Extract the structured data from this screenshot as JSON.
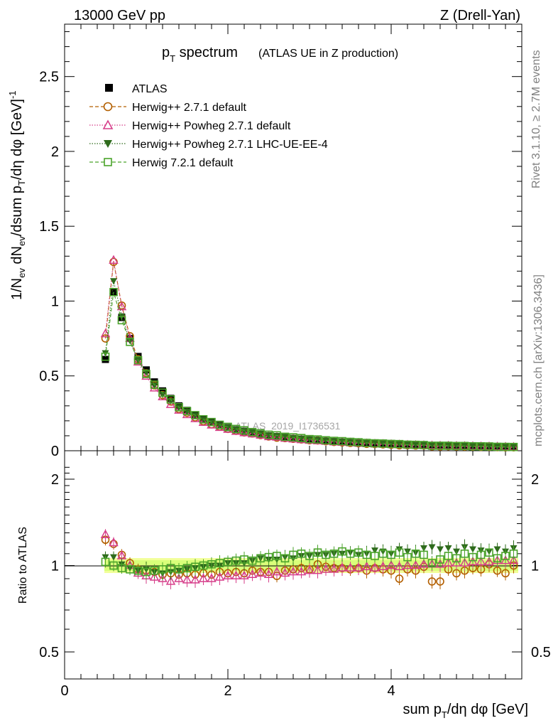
{
  "header": {
    "left": "13000 GeV pp",
    "right": "Z (Drell-Yan)"
  },
  "side": {
    "rivet": "Rivet 3.1.10, ≥ 2.7M events",
    "mcplots": "mcplots.cern.ch [arXiv:1306.3436]"
  },
  "chart_data": {
    "type": "scatter",
    "title_main": "p",
    "title_sub": "T",
    "title_rest": " spectrum",
    "title_paren": "(ATLAS UE in Z production)",
    "watermark": "ATLAS_2019_I1736531",
    "xlabel": "sum p_T/dη dφ [GeV]",
    "ylabel": "1/N_ev dN_ev/dsum p_T/dη dφ [GeV]^-1",
    "ratio_ylabel": "Ratio to ATLAS",
    "xlim": [
      0,
      5.6
    ],
    "ylim": [
      0,
      2.85
    ],
    "ratio_ylim": [
      0.35,
      2.3
    ],
    "x_ticks": [
      "0",
      "2",
      "4"
    ],
    "y_ticks": [
      "0",
      "0.5",
      "1",
      "1.5",
      "2",
      "2.5"
    ],
    "ratio_ticks": [
      "0.5",
      "1",
      "2"
    ],
    "x": [
      0.5,
      0.6,
      0.7,
      0.8,
      0.9,
      1.0,
      1.1,
      1.2,
      1.3,
      1.4,
      1.5,
      1.6,
      1.7,
      1.8,
      1.9,
      2.0,
      2.1,
      2.2,
      2.3,
      2.4,
      2.5,
      2.6,
      2.7,
      2.8,
      2.9,
      3.0,
      3.1,
      3.2,
      3.3,
      3.4,
      3.5,
      3.6,
      3.7,
      3.8,
      3.9,
      4.0,
      4.1,
      4.2,
      4.3,
      4.4,
      4.5,
      4.6,
      4.7,
      4.8,
      4.9,
      5.0,
      5.1,
      5.2,
      5.3,
      5.4,
      5.5
    ],
    "series": [
      {
        "name": "ATLAS",
        "marker": "filled-square",
        "color": "#000000",
        "values": [
          0.61,
          1.06,
          0.89,
          0.75,
          0.63,
          0.54,
          0.46,
          0.4,
          0.35,
          0.3,
          0.27,
          0.24,
          0.21,
          0.19,
          0.17,
          0.155,
          0.14,
          0.13,
          0.12,
          0.11,
          0.1,
          0.095,
          0.088,
          0.082,
          0.077,
          0.072,
          0.068,
          0.064,
          0.06,
          0.057,
          0.054,
          0.051,
          0.048,
          0.046,
          0.044,
          0.042,
          0.04,
          0.038,
          0.036,
          0.035,
          0.033,
          0.032,
          0.031,
          0.03,
          0.029,
          0.028,
          0.027,
          0.026,
          0.025,
          0.024,
          0.023
        ]
      },
      {
        "name": "Herwig++ 2.7.1 default",
        "marker": "open-circle",
        "color": "#b35f00",
        "ratios": [
          1.23,
          1.19,
          1.09,
          1.02,
          0.97,
          0.96,
          0.95,
          0.93,
          0.94,
          0.93,
          0.94,
          0.93,
          0.94,
          0.93,
          0.95,
          0.94,
          0.95,
          0.94,
          0.96,
          0.95,
          0.95,
          0.92,
          0.96,
          0.97,
          0.98,
          0.97,
          1.01,
          0.99,
          0.98,
          0.98,
          0.97,
          0.98,
          0.96,
          0.98,
          0.97,
          0.96,
          0.9,
          0.97,
          0.96,
          0.99,
          0.88,
          0.88,
          0.97,
          0.94,
          0.96,
          0.98,
          0.97,
          1.01,
          0.96,
          0.94,
          1.0
        ]
      },
      {
        "name": "Herwig++ Powheg 2.7.1 default",
        "marker": "open-triangle",
        "color": "#d63e8a",
        "ratios": [
          1.28,
          1.2,
          1.08,
          1.0,
          0.94,
          0.92,
          0.91,
          0.9,
          0.88,
          0.9,
          0.89,
          0.89,
          0.9,
          0.9,
          0.91,
          0.92,
          0.92,
          0.92,
          0.93,
          0.94,
          0.93,
          0.95,
          0.94,
          0.95,
          0.95,
          0.96,
          0.96,
          0.97,
          0.97,
          0.98,
          0.98,
          0.98,
          0.99,
          0.98,
          0.99,
          1.0,
          0.99,
          1.0,
          1.0,
          1.01,
          1.01,
          1.01,
          1.02,
          1.02,
          1.02,
          1.03,
          1.03,
          1.03,
          1.04,
          1.04,
          1.04
        ]
      },
      {
        "name": "Herwig++ Powheg 2.7.1 LHC-UE-EE-4",
        "marker": "filled-triangle-down",
        "color": "#2e6b1c",
        "ratios": [
          1.07,
          1.07,
          1.01,
          0.98,
          0.96,
          0.97,
          0.95,
          0.94,
          0.95,
          0.96,
          0.97,
          0.98,
          0.99,
          1.0,
          1.0,
          1.02,
          1.02,
          1.02,
          1.04,
          1.06,
          1.05,
          1.05,
          1.07,
          1.06,
          1.08,
          1.08,
          1.09,
          1.09,
          1.1,
          1.1,
          1.11,
          1.09,
          1.1,
          1.13,
          1.12,
          1.1,
          1.14,
          1.12,
          1.11,
          1.15,
          1.16,
          1.14,
          1.15,
          1.12,
          1.16,
          1.14,
          1.13,
          1.12,
          1.14,
          1.12,
          1.15
        ]
      },
      {
        "name": "Herwig 7.2.1 default",
        "marker": "open-square",
        "color": "#4aa32a",
        "ratios": [
          1.03,
          1.0,
          0.98,
          0.97,
          0.96,
          0.95,
          0.96,
          0.97,
          0.98,
          0.97,
          0.98,
          0.99,
          1.0,
          1.01,
          1.02,
          1.03,
          1.04,
          1.05,
          1.04,
          1.06,
          1.07,
          1.08,
          1.06,
          1.09,
          1.1,
          1.08,
          1.11,
          1.09,
          1.1,
          1.12,
          1.1,
          1.11,
          1.09,
          1.08,
          1.1,
          1.09,
          1.11,
          1.07,
          1.1,
          1.09,
          1.02,
          1.05,
          1.08,
          1.06,
          1.1,
          1.07,
          1.09,
          1.11,
          1.06,
          1.08,
          1.1
        ]
      }
    ]
  }
}
